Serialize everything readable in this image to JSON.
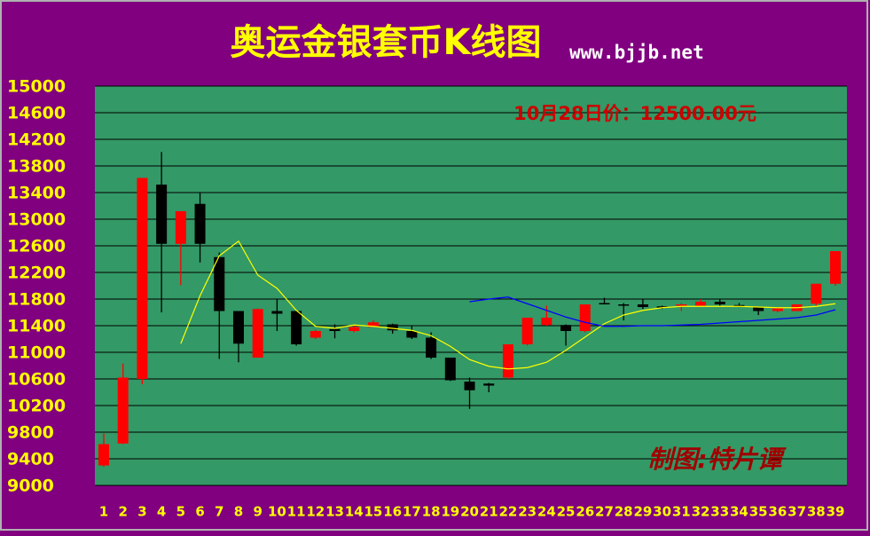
{
  "chart_data": {
    "type": "candlestick",
    "title": "奥运金银套币K线图",
    "subtitle": "www.bjjb.net",
    "annotation": "10月28日价：12500.00元",
    "signature": "制图:特片谭",
    "categories": [
      "1",
      "2",
      "3",
      "4",
      "5",
      "6",
      "7",
      "8",
      "9",
      "10",
      "11",
      "12",
      "13",
      "14",
      "15",
      "16",
      "17",
      "18",
      "19",
      "20",
      "21",
      "22",
      "23",
      "24",
      "25",
      "26",
      "27",
      "28",
      "29",
      "30",
      "31",
      "32",
      "33",
      "34",
      "35",
      "36",
      "37",
      "38",
      "39"
    ],
    "open": [
      9300,
      9630,
      10600,
      13520,
      12630,
      13230,
      12430,
      11620,
      10920,
      11620,
      11620,
      11220,
      11350,
      11320,
      11380,
      11420,
      11320,
      11220,
      10920,
      10560,
      10530,
      10620,
      11120,
      11410,
      11410,
      11320,
      11740,
      11720,
      11720,
      11690,
      11700,
      11700,
      11760,
      11710,
      11680,
      11620,
      11620,
      11730,
      12030
    ],
    "high": [
      9780,
      10830,
      13620,
      14010,
      13120,
      13400,
      12500,
      11620,
      11660,
      11800,
      11620,
      11340,
      11420,
      11400,
      11480,
      11430,
      11400,
      11300,
      10920,
      10620,
      10540,
      11120,
      11520,
      11700,
      11420,
      11720,
      11820,
      11740,
      11800,
      11700,
      11740,
      11800,
      11800,
      11740,
      11680,
      11680,
      11720,
      12030,
      12520
    ],
    "low": [
      9280,
      9620,
      10520,
      11600,
      12010,
      12350,
      10900,
      10850,
      10920,
      11320,
      11100,
      11200,
      11210,
      11300,
      11380,
      11280,
      11200,
      10900,
      10570,
      10150,
      10400,
      10600,
      11100,
      11400,
      11100,
      11300,
      11720,
      11480,
      11650,
      11650,
      11620,
      11700,
      11700,
      11680,
      11560,
      11600,
      11620,
      11700,
      12000
    ],
    "close": [
      9620,
      10620,
      13620,
      12630,
      13120,
      12630,
      11620,
      11130,
      11650,
      11580,
      11120,
      11320,
      11320,
      11380,
      11450,
      11330,
      11220,
      10920,
      10580,
      10430,
      10500,
      11120,
      11520,
      11520,
      11320,
      11720,
      11720,
      11700,
      11680,
      11680,
      11720,
      11760,
      11720,
      11700,
      11620,
      11660,
      11720,
      12030,
      12520
    ],
    "up_color": "#ff0000",
    "down_color": "#000000",
    "lines": [
      {
        "color": "#ffff00",
        "values": [
          null,
          null,
          null,
          null,
          11130,
          11850,
          12450,
          12670,
          12160,
          11960,
          11630,
          11390,
          11360,
          11410,
          11390,
          11360,
          11330,
          11250,
          11090,
          10890,
          10790,
          10750,
          10770,
          10850,
          11030,
          11230,
          11430,
          11560,
          11630,
          11670,
          11690,
          11690,
          11690,
          11690,
          11680,
          11670,
          11670,
          11690,
          11730
        ]
      },
      {
        "color": "#0000ff",
        "values": [
          null,
          null,
          null,
          null,
          null,
          null,
          null,
          null,
          null,
          null,
          null,
          null,
          null,
          null,
          null,
          null,
          null,
          null,
          null,
          11760,
          11800,
          11830,
          11730,
          11630,
          11530,
          11450,
          11390,
          11390,
          11400,
          11400,
          11410,
          11420,
          11440,
          11460,
          11480,
          11500,
          11520,
          11560,
          11640
        ]
      }
    ],
    "ylim": [
      9000,
      15000
    ],
    "yticks": [
      9000,
      9400,
      9800,
      10200,
      10600,
      11000,
      11400,
      11800,
      12200,
      12600,
      13000,
      13400,
      13800,
      14200,
      14600,
      15000
    ],
    "grid": true
  }
}
